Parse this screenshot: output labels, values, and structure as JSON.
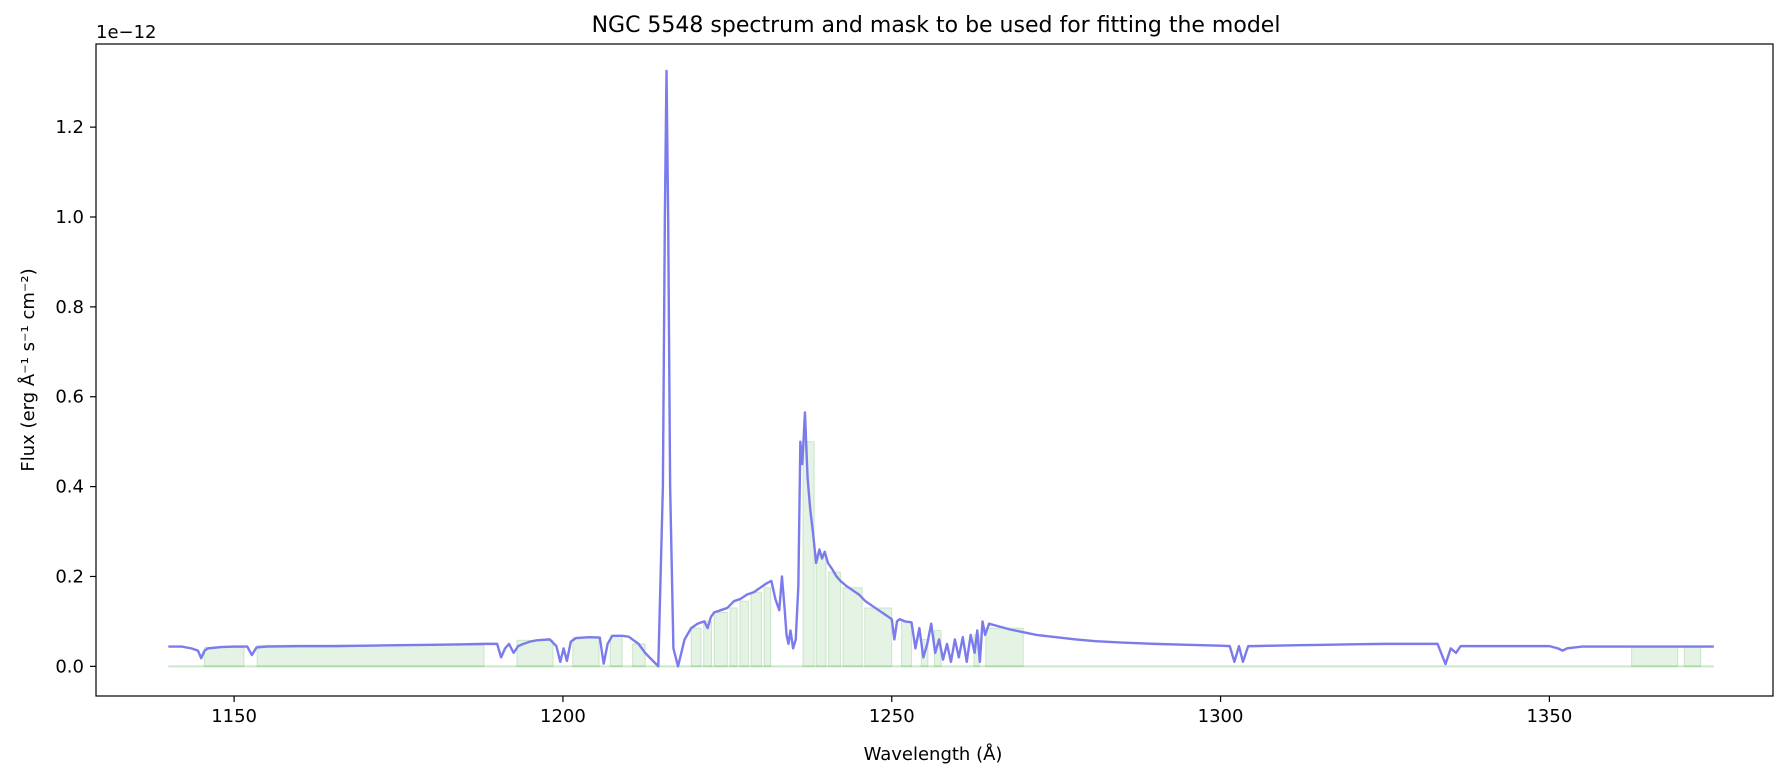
{
  "chart_data": {
    "type": "line",
    "title": "NGC 5548 spectrum and mask to be used for fitting the model",
    "xlabel": "Wavelength (Å)",
    "ylabel": "Flux (erg Å⁻¹ s⁻¹ cm⁻²)",
    "y_offset_label": "1e−12",
    "xlim": [
      1129,
      1384
    ],
    "ylim": [
      -0.066,
      1.385
    ],
    "y_scale_factor": 1e-12,
    "x_ticks": [
      1150,
      1200,
      1250,
      1300,
      1350
    ],
    "x_tick_labels": [
      "1150",
      "1200",
      "1250",
      "1300",
      "1350"
    ],
    "y_ticks": [
      0.0,
      0.2,
      0.4,
      0.6,
      0.8,
      1.0,
      1.2
    ],
    "y_tick_labels": [
      "0.0",
      "0.2",
      "0.4",
      "0.6",
      "0.8",
      "1.0",
      "1.2"
    ],
    "grid": false,
    "series": [
      {
        "color": "#7b7bed",
        "x": [
          1140,
          1142,
          1143.5,
          1144.5,
          1145,
          1145.5,
          1146,
          1148,
          1150,
          1152,
          1152.7,
          1153.4,
          1155,
          1160,
          1165,
          1170,
          1175,
          1180,
          1185,
          1188,
          1190,
          1190.6,
          1191.2,
          1191.8,
          1192.5,
          1193.2,
          1194,
          1195,
          1196,
          1198,
          1199,
          1199.6,
          1200.1,
          1200.6,
          1201.2,
          1202,
          1204,
          1205.6,
          1206.2,
          1206.8,
          1207.5,
          1209,
          1210,
          1211.5,
          1212.5,
          1213.5,
          1214.5,
          1215.2,
          1215.5,
          1215.75,
          1216,
          1216.3,
          1216.8,
          1217.5,
          1218.5,
          1219.5,
          1220.5,
          1221.5,
          1222,
          1222.5,
          1223,
          1224,
          1225,
          1226,
          1227,
          1228,
          1229,
          1230,
          1231,
          1231.7,
          1232.3,
          1232.9,
          1233.3,
          1233.7,
          1234,
          1234.3,
          1234.6,
          1235,
          1235.4,
          1235.8,
          1236.1,
          1236.4,
          1236.8,
          1237.2,
          1237.6,
          1238,
          1238.5,
          1239,
          1239.4,
          1239.8,
          1240.3,
          1241,
          1241.6,
          1242.2,
          1243,
          1244,
          1245,
          1246,
          1247,
          1248,
          1249,
          1250,
          1250.4,
          1250.8,
          1251.2,
          1252,
          1253,
          1253.6,
          1254.2,
          1254.8,
          1255.4,
          1256,
          1256.6,
          1257.2,
          1257.8,
          1258.4,
          1259,
          1259.6,
          1260.2,
          1260.8,
          1261.4,
          1262,
          1262.6,
          1263,
          1263.4,
          1263.8,
          1264.2,
          1264.8,
          1266,
          1268,
          1270,
          1272,
          1275,
          1278,
          1281,
          1285,
          1290,
          1295,
          1300,
          1301.4,
          1302.1,
          1302.8,
          1303.4,
          1304.2,
          1305,
          1308,
          1312,
          1316,
          1320,
          1325,
          1330,
          1333,
          1334.2,
          1335,
          1335.8,
          1336.5,
          1340,
          1345,
          1350,
          1351.3,
          1352,
          1352.7,
          1355,
          1360,
          1365,
          1370,
          1375
        ],
        "values": [
          0.044,
          0.044,
          0.04,
          0.035,
          0.018,
          0.035,
          0.04,
          0.043,
          0.044,
          0.044,
          0.025,
          0.042,
          0.044,
          0.045,
          0.045,
          0.046,
          0.047,
          0.048,
          0.049,
          0.05,
          0.05,
          0.02,
          0.04,
          0.05,
          0.03,
          0.045,
          0.05,
          0.055,
          0.058,
          0.06,
          0.045,
          0.01,
          0.04,
          0.012,
          0.055,
          0.063,
          0.065,
          0.064,
          0.006,
          0.05,
          0.068,
          0.068,
          0.066,
          0.05,
          0.03,
          0.015,
          0.0,
          0.4,
          1.0,
          1.325,
          1.0,
          0.4,
          0.04,
          0.0,
          0.06,
          0.085,
          0.095,
          0.1,
          0.085,
          0.11,
          0.12,
          0.125,
          0.13,
          0.145,
          0.15,
          0.16,
          0.165,
          0.175,
          0.185,
          0.19,
          0.15,
          0.125,
          0.2,
          0.13,
          0.07,
          0.05,
          0.08,
          0.04,
          0.06,
          0.18,
          0.5,
          0.45,
          0.565,
          0.42,
          0.35,
          0.3,
          0.23,
          0.26,
          0.24,
          0.255,
          0.23,
          0.215,
          0.2,
          0.19,
          0.18,
          0.17,
          0.16,
          0.145,
          0.135,
          0.125,
          0.115,
          0.105,
          0.06,
          0.1,
          0.105,
          0.1,
          0.098,
          0.04,
          0.085,
          0.02,
          0.05,
          0.095,
          0.03,
          0.06,
          0.015,
          0.05,
          0.01,
          0.06,
          0.02,
          0.065,
          0.01,
          0.07,
          0.03,
          0.08,
          0.01,
          0.1,
          0.07,
          0.095,
          0.09,
          0.082,
          0.076,
          0.07,
          0.065,
          0.06,
          0.056,
          0.053,
          0.05,
          0.048,
          0.046,
          0.045,
          0.01,
          0.045,
          0.01,
          0.045,
          0.045,
          0.046,
          0.047,
          0.048,
          0.049,
          0.05,
          0.05,
          0.05,
          0.005,
          0.04,
          0.03,
          0.045,
          0.045,
          0.045,
          0.045,
          0.04,
          0.035,
          0.04,
          0.044,
          0.044,
          0.044,
          0.044,
          0.044
        ]
      }
    ],
    "mask": {
      "color": "#2ca02c",
      "baseline_range": [
        1140,
        1375
      ],
      "regions": [
        [
          1145.5,
          1151.5,
          0.042
        ],
        [
          1153.5,
          1188,
          0.047
        ],
        [
          1193,
          1198.5,
          0.058
        ],
        [
          1201.5,
          1205.5,
          0.064
        ],
        [
          1207.2,
          1209,
          0.068
        ],
        [
          1210.6,
          1212.5,
          0.05
        ],
        [
          1219.5,
          1221,
          0.085
        ],
        [
          1221.4,
          1222.6,
          0.1
        ],
        [
          1223,
          1225,
          0.12
        ],
        [
          1225.4,
          1226.5,
          0.13
        ],
        [
          1226.9,
          1228.2,
          0.145
        ],
        [
          1228.6,
          1230.2,
          0.165
        ],
        [
          1230.6,
          1231.6,
          0.175
        ],
        [
          1236.5,
          1238.2,
          0.5
        ],
        [
          1238.5,
          1240,
          0.25
        ],
        [
          1240.4,
          1242.2,
          0.21
        ],
        [
          1242.6,
          1245.5,
          0.175
        ],
        [
          1245.9,
          1250,
          0.13
        ],
        [
          1251.5,
          1253,
          0.1
        ],
        [
          1254.5,
          1255.5,
          0.06
        ],
        [
          1256.5,
          1257.5,
          0.08
        ],
        [
          1262.5,
          1263.3,
          0.07
        ],
        [
          1264.3,
          1270,
          0.085
        ],
        [
          1362.5,
          1369.5,
          0.043
        ],
        [
          1370.5,
          1373,
          0.043
        ]
      ]
    }
  }
}
